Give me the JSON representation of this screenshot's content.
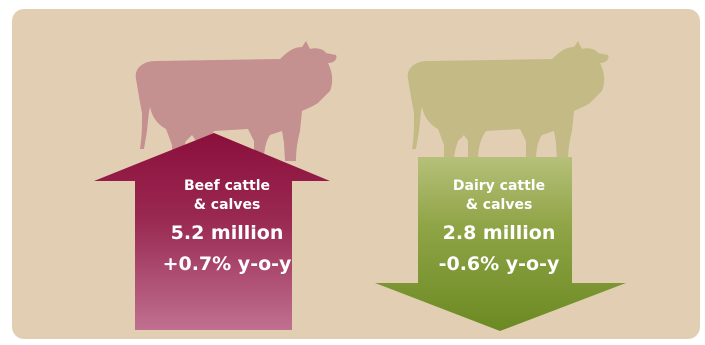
{
  "beef": {
    "line1": "Beef cattle",
    "line2": "& calves",
    "count": "5.2 million",
    "change": "+0.7% y-o-y"
  },
  "dairy": {
    "line1": "Dairy cattle",
    "line2": "& calves",
    "count": "2.8 million",
    "change": "-0.6% y-o-y"
  },
  "colors": {
    "background": "#e2cfb3",
    "beef_cow": "#c59090",
    "beef_arrow_top": "#8b0f3c",
    "beef_arrow_bottom": "#c07090",
    "dairy_cow": "#c3ba86",
    "dairy_arrow_top": "#b6c07a",
    "dairy_arrow_bottom": "#6b8a22"
  },
  "icons": {
    "beef_cow": "cow-silhouette-icon",
    "dairy_cow": "cow-silhouette-icon",
    "beef_arrow": "arrow-up-icon",
    "dairy_arrow": "arrow-down-icon"
  }
}
